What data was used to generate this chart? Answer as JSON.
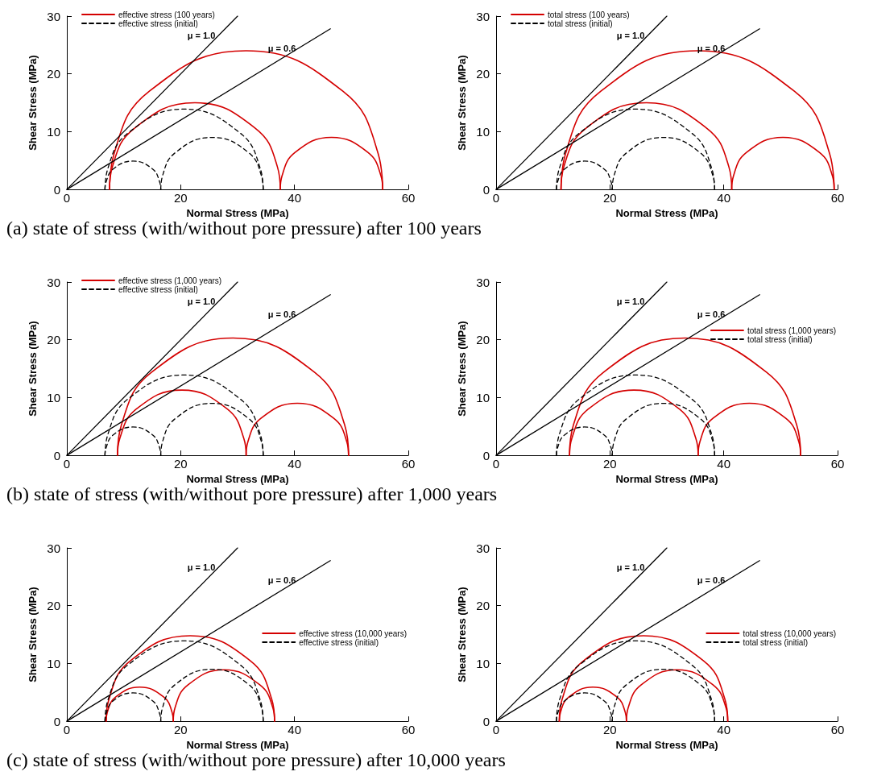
{
  "chart_data": [
    {
      "type": "line",
      "xlabel": "Normal Stress (MPa)",
      "ylabel": "Shear Stress (MPa)",
      "xlim": [
        0,
        60
      ],
      "xticks": [
        0,
        20,
        40,
        60
      ],
      "ylim": [
        0,
        30
      ],
      "yticks": [
        0,
        10,
        20,
        30
      ],
      "grid": false,
      "legend": "top left",
      "marker": "none",
      "annotations": [
        "(a) state of stress (with/without pore pressure) after 100 years"
      ],
      "series": [
        {
          "name": "effective stress (100 years)",
          "color": "#d40000",
          "line_style": "solid",
          "x": [
            7.5,
            8.0,
            11.9,
            22.5,
            33.1,
            37.0,
            37.5
          ],
          "values": [
            0,
            3.9,
            10.6,
            15,
            10.6,
            3.9,
            0
          ]
        },
        {
          "color": "#d40000",
          "line_style": "solid",
          "x": [
            37.5,
            37.8,
            40.1,
            46.5,
            52.9,
            55.2,
            55.5
          ],
          "values": [
            0,
            2.3,
            6.4,
            9,
            6.4,
            2.3,
            0
          ]
        },
        {
          "color": "#d40000",
          "line_style": "solid",
          "x": [
            7.5,
            8.3,
            14.5,
            31.5,
            48.5,
            54.7,
            55.5
          ],
          "values": [
            0,
            6.2,
            17.0,
            24,
            17.0,
            6.2,
            0
          ]
        },
        {
          "name": "effective stress (initial)",
          "color": "#000000",
          "line_style": "dashed",
          "x": [
            6.7,
            6.9,
            8.1,
            11.6,
            15.1,
            16.3,
            16.5
          ],
          "values": [
            0,
            1.3,
            3.5,
            4.9,
            3.5,
            1.3,
            0
          ]
        },
        {
          "color": "#000000",
          "line_style": "dashed",
          "x": [
            16.5,
            16.8,
            19.1,
            25.5,
            31.9,
            34.2,
            34.5
          ],
          "values": [
            0,
            2.3,
            6.4,
            9,
            6.4,
            2.3,
            0
          ]
        },
        {
          "color": "#000000",
          "line_style": "dashed",
          "x": [
            6.7,
            7.2,
            10.8,
            20.6,
            30.4,
            34.0,
            34.5
          ],
          "values": [
            0,
            3.6,
            9.8,
            13.9,
            9.8,
            3.6,
            0
          ]
        },
        {
          "name": "μ = 1.0",
          "color": "#000000",
          "line_style": "solid",
          "x": [
            0,
            30
          ],
          "values": [
            0,
            30
          ]
        },
        {
          "name": "μ = 0.6",
          "color": "#000000",
          "line_style": "solid",
          "x": [
            0,
            46.3
          ],
          "values": [
            0,
            27.8
          ]
        }
      ]
    },
    {
      "type": "line",
      "xlabel": "Normal Stress (MPa)",
      "ylabel": "Shear Stress (MPa)",
      "xlim": [
        0,
        60
      ],
      "xticks": [
        0,
        20,
        40,
        60
      ],
      "ylim": [
        0,
        30
      ],
      "yticks": [
        0,
        10,
        20,
        30
      ],
      "grid": false,
      "legend": "top left",
      "marker": "none",
      "series": [
        {
          "name": "total stress (100 years)",
          "color": "#d40000",
          "line_style": "solid",
          "x": [
            11.4,
            11.9,
            15.8,
            26.4,
            37.0,
            40.9,
            41.4
          ],
          "values": [
            0,
            3.9,
            10.6,
            15,
            10.6,
            3.9,
            0
          ]
        },
        {
          "color": "#d40000",
          "line_style": "solid",
          "x": [
            41.4,
            41.7,
            44.0,
            50.4,
            56.8,
            59.1,
            59.4
          ],
          "values": [
            0,
            2.3,
            6.4,
            9,
            6.4,
            2.3,
            0
          ]
        },
        {
          "color": "#d40000",
          "line_style": "solid",
          "x": [
            11.4,
            12.2,
            18.4,
            35.4,
            52.4,
            58.6,
            59.4
          ],
          "values": [
            0,
            6.2,
            17.0,
            24,
            17.0,
            6.2,
            0
          ]
        },
        {
          "name": "total stress (initial)",
          "color": "#000000",
          "line_style": "dashed",
          "x": [
            10.6,
            10.8,
            12.0,
            15.5,
            19.0,
            20.2,
            20.4
          ],
          "values": [
            0,
            1.3,
            3.5,
            4.9,
            3.5,
            1.3,
            0
          ]
        },
        {
          "color": "#000000",
          "line_style": "dashed",
          "x": [
            20.4,
            20.7,
            23.0,
            29.4,
            35.8,
            38.1,
            38.4
          ],
          "values": [
            0,
            2.3,
            6.4,
            9,
            6.4,
            2.3,
            0
          ]
        },
        {
          "color": "#000000",
          "line_style": "dashed",
          "x": [
            10.6,
            11.1,
            14.7,
            24.5,
            34.3,
            37.9,
            38.4
          ],
          "values": [
            0,
            3.6,
            9.8,
            13.9,
            9.8,
            3.6,
            0
          ]
        },
        {
          "name": "μ = 1.0",
          "color": "#000000",
          "line_style": "solid",
          "x": [
            0,
            30
          ],
          "values": [
            0,
            30
          ]
        },
        {
          "name": "μ = 0.6",
          "color": "#000000",
          "line_style": "solid",
          "x": [
            0,
            46.3
          ],
          "values": [
            0,
            27.8
          ]
        }
      ]
    },
    {
      "type": "line",
      "xlabel": "Normal Stress (MPa)",
      "ylabel": "Shear Stress (MPa)",
      "xlim": [
        0,
        60
      ],
      "xticks": [
        0,
        20,
        40,
        60
      ],
      "ylim": [
        0,
        30
      ],
      "yticks": [
        0,
        10,
        20,
        30
      ],
      "grid": false,
      "legend": "top left",
      "marker": "none",
      "annotations": [
        "(b) state of stress (with/without pore pressure) after 1,000 years"
      ],
      "series": [
        {
          "name": "effective stress (1,000 years)",
          "color": "#d40000",
          "line_style": "solid",
          "x": [
            8.9,
            9.3,
            12.2,
            20.2,
            28.2,
            31.1,
            31.5
          ],
          "values": [
            0,
            2.9,
            8.0,
            11.3,
            8.0,
            2.9,
            0
          ]
        },
        {
          "color": "#d40000",
          "line_style": "solid",
          "x": [
            31.5,
            31.8,
            34.1,
            40.5,
            46.9,
            49.2,
            49.5
          ],
          "values": [
            0,
            2.3,
            6.4,
            9,
            6.4,
            2.3,
            0
          ]
        },
        {
          "color": "#d40000",
          "line_style": "solid",
          "x": [
            8.9,
            9.6,
            14.9,
            29.2,
            43.5,
            48.8,
            49.5
          ],
          "values": [
            0,
            5.3,
            14.4,
            20.3,
            14.4,
            5.3,
            0
          ]
        },
        {
          "name": "effective stress (initial)",
          "color": "#000000",
          "line_style": "dashed",
          "x": [
            6.7,
            6.9,
            8.1,
            11.6,
            15.1,
            16.3,
            16.5
          ],
          "values": [
            0,
            1.3,
            3.5,
            4.9,
            3.5,
            1.3,
            0
          ]
        },
        {
          "color": "#000000",
          "line_style": "dashed",
          "x": [
            16.5,
            16.8,
            19.1,
            25.5,
            31.9,
            34.2,
            34.5
          ],
          "values": [
            0,
            2.3,
            6.4,
            9,
            6.4,
            2.3,
            0
          ]
        },
        {
          "color": "#000000",
          "line_style": "dashed",
          "x": [
            6.7,
            7.2,
            10.8,
            20.6,
            30.4,
            34.0,
            34.5
          ],
          "values": [
            0,
            3.6,
            9.8,
            13.9,
            9.8,
            3.6,
            0
          ]
        },
        {
          "name": "μ = 1.0",
          "color": "#000000",
          "line_style": "solid",
          "x": [
            0,
            30
          ],
          "values": [
            0,
            30
          ]
        },
        {
          "name": "μ = 0.6",
          "color": "#000000",
          "line_style": "solid",
          "x": [
            0,
            46.3
          ],
          "values": [
            0,
            27.8
          ]
        }
      ]
    },
    {
      "type": "line",
      "xlabel": "Normal Stress (MPa)",
      "ylabel": "Shear Stress (MPa)",
      "xlim": [
        0,
        60
      ],
      "xticks": [
        0,
        20,
        40,
        60
      ],
      "ylim": [
        0,
        30
      ],
      "yticks": [
        0,
        10,
        20,
        30
      ],
      "grid": false,
      "legend": "top right",
      "marker": "none",
      "series": [
        {
          "name": "total stress (1,000 years)",
          "color": "#d40000",
          "line_style": "solid",
          "x": [
            12.9,
            13.3,
            16.2,
            24.2,
            32.2,
            35.1,
            35.5
          ],
          "values": [
            0,
            2.9,
            8.0,
            11.3,
            8.0,
            2.9,
            0
          ]
        },
        {
          "color": "#d40000",
          "line_style": "solid",
          "x": [
            35.5,
            35.8,
            38.1,
            44.5,
            50.9,
            53.2,
            53.5
          ],
          "values": [
            0,
            2.3,
            6.4,
            9,
            6.4,
            2.3,
            0
          ]
        },
        {
          "color": "#d40000",
          "line_style": "solid",
          "x": [
            12.9,
            13.6,
            18.9,
            33.2,
            47.5,
            52.8,
            53.5
          ],
          "values": [
            0,
            5.3,
            14.4,
            20.3,
            14.4,
            5.3,
            0
          ]
        },
        {
          "name": "total stress (initial)",
          "color": "#000000",
          "line_style": "dashed",
          "x": [
            10.6,
            10.8,
            12.0,
            15.5,
            19.0,
            20.2,
            20.4
          ],
          "values": [
            0,
            1.3,
            3.5,
            4.9,
            3.5,
            1.3,
            0
          ]
        },
        {
          "color": "#000000",
          "line_style": "dashed",
          "x": [
            20.4,
            20.7,
            23.0,
            29.4,
            35.8,
            38.1,
            38.4
          ],
          "values": [
            0,
            2.3,
            6.4,
            9,
            6.4,
            2.3,
            0
          ]
        },
        {
          "color": "#000000",
          "line_style": "dashed",
          "x": [
            10.6,
            11.1,
            14.7,
            24.5,
            34.3,
            37.9,
            38.4
          ],
          "values": [
            0,
            3.6,
            9.8,
            13.9,
            9.8,
            3.6,
            0
          ]
        },
        {
          "name": "μ = 1.0",
          "color": "#000000",
          "line_style": "solid",
          "x": [
            0,
            30
          ],
          "values": [
            0,
            30
          ]
        },
        {
          "name": "μ = 0.6",
          "color": "#000000",
          "line_style": "solid",
          "x": [
            0,
            46.3
          ],
          "values": [
            0,
            27.8
          ]
        }
      ]
    },
    {
      "type": "line",
      "xlabel": "Normal Stress (MPa)",
      "ylabel": "Shear Stress (MPa)",
      "xlim": [
        0,
        60
      ],
      "xticks": [
        0,
        20,
        40,
        60
      ],
      "ylim": [
        0,
        30
      ],
      "yticks": [
        0,
        10,
        20,
        30
      ],
      "grid": false,
      "legend": "right",
      "marker": "none",
      "annotations": [
        "(c) state of stress (with/without pore pressure) after 10,000 years"
      ],
      "series": [
        {
          "name": "effective stress (10,000 years)",
          "color": "#d40000",
          "line_style": "solid",
          "x": [
            6.9,
            7.1,
            8.6,
            12.8,
            17.0,
            18.5,
            18.7
          ],
          "values": [
            0,
            1.5,
            4.2,
            5.9,
            4.2,
            1.5,
            0
          ]
        },
        {
          "color": "#d40000",
          "line_style": "solid",
          "x": [
            18.7,
            19.0,
            21.3,
            27.6,
            33.9,
            36.2,
            36.5
          ],
          "values": [
            0,
            2.3,
            6.3,
            8.9,
            6.3,
            2.3,
            0
          ]
        },
        {
          "color": "#d40000",
          "line_style": "solid",
          "x": [
            6.9,
            7.4,
            11.2,
            21.7,
            32.2,
            36.0,
            36.5
          ],
          "values": [
            0,
            3.8,
            10.5,
            14.8,
            10.5,
            3.8,
            0
          ]
        },
        {
          "name": "effective stress (initial)",
          "color": "#000000",
          "line_style": "dashed",
          "x": [
            6.7,
            6.9,
            8.1,
            11.6,
            15.1,
            16.3,
            16.5
          ],
          "values": [
            0,
            1.3,
            3.5,
            4.9,
            3.5,
            1.3,
            0
          ]
        },
        {
          "color": "#000000",
          "line_style": "dashed",
          "x": [
            16.5,
            16.8,
            19.1,
            25.5,
            31.9,
            34.2,
            34.5
          ],
          "values": [
            0,
            2.3,
            6.4,
            9,
            6.4,
            2.3,
            0
          ]
        },
        {
          "color": "#000000",
          "line_style": "dashed",
          "x": [
            6.7,
            7.2,
            10.8,
            20.6,
            30.4,
            34.0,
            34.5
          ],
          "values": [
            0,
            3.6,
            9.8,
            13.9,
            9.8,
            3.6,
            0
          ]
        },
        {
          "name": "μ = 1.0",
          "color": "#000000",
          "line_style": "solid",
          "x": [
            0,
            30
          ],
          "values": [
            0,
            30
          ]
        },
        {
          "name": "μ = 0.6",
          "color": "#000000",
          "line_style": "solid",
          "x": [
            0,
            46.3
          ],
          "values": [
            0,
            27.8
          ]
        }
      ]
    },
    {
      "type": "line",
      "xlabel": "Normal Stress (MPa)",
      "ylabel": "Shear Stress (MPa)",
      "xlim": [
        0,
        60
      ],
      "xticks": [
        0,
        20,
        40,
        60
      ],
      "ylim": [
        0,
        30
      ],
      "yticks": [
        0,
        10,
        20,
        30
      ],
      "grid": false,
      "legend": "right",
      "marker": "none",
      "series": [
        {
          "name": "total stress (10,000 years)",
          "color": "#d40000",
          "line_style": "solid",
          "x": [
            11.1,
            11.3,
            12.8,
            17.0,
            21.2,
            22.7,
            22.9
          ],
          "values": [
            0,
            1.5,
            4.2,
            5.9,
            4.2,
            1.5,
            0
          ]
        },
        {
          "color": "#d40000",
          "line_style": "solid",
          "x": [
            22.9,
            23.2,
            25.5,
            31.8,
            38.1,
            40.4,
            40.7
          ],
          "values": [
            0,
            2.3,
            6.3,
            8.9,
            6.3,
            2.3,
            0
          ]
        },
        {
          "color": "#d40000",
          "line_style": "solid",
          "x": [
            11.1,
            11.6,
            15.4,
            25.9,
            36.4,
            40.2,
            40.7
          ],
          "values": [
            0,
            3.8,
            10.5,
            14.8,
            10.5,
            3.8,
            0
          ]
        },
        {
          "name": "total stress (initial)",
          "color": "#000000",
          "line_style": "dashed",
          "x": [
            10.6,
            10.8,
            12.0,
            15.5,
            19.0,
            20.2,
            20.4
          ],
          "values": [
            0,
            1.3,
            3.5,
            4.9,
            3.5,
            1.3,
            0
          ]
        },
        {
          "color": "#000000",
          "line_style": "dashed",
          "x": [
            20.4,
            20.7,
            23.0,
            29.4,
            35.8,
            38.1,
            38.4
          ],
          "values": [
            0,
            2.3,
            6.4,
            9,
            6.4,
            2.3,
            0
          ]
        },
        {
          "color": "#000000",
          "line_style": "dashed",
          "x": [
            10.6,
            11.1,
            14.7,
            24.5,
            34.3,
            37.9,
            38.4
          ],
          "values": [
            0,
            3.6,
            9.8,
            13.9,
            9.8,
            3.6,
            0
          ]
        },
        {
          "name": "μ = 1.0",
          "color": "#000000",
          "line_style": "solid",
          "x": [
            0,
            30
          ],
          "values": [
            0,
            30
          ]
        },
        {
          "name": "μ = 0.6",
          "color": "#000000",
          "line_style": "solid",
          "x": [
            0,
            46.3
          ],
          "values": [
            0,
            27.8
          ]
        }
      ]
    }
  ]
}
